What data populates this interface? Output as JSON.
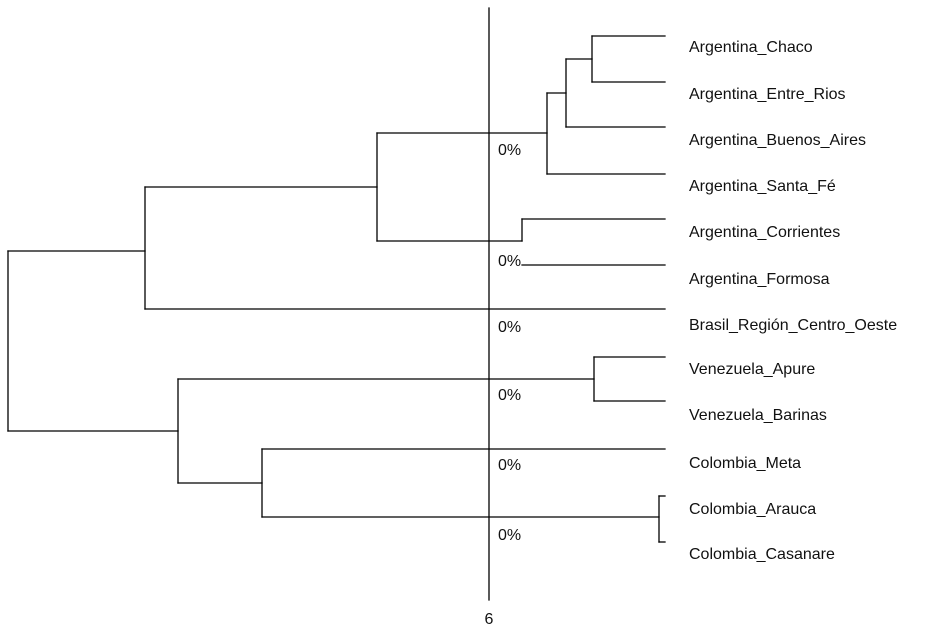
{
  "dendrogram": {
    "leaves": [
      "Argentina_Chaco",
      "Argentina_Entre_Rios",
      "Argentina_Buenos_Aires",
      "Argentina_Santa_Fé",
      "Argentina_Corrientes",
      "Argentina_Formosa",
      "Brasil_Región_Centro_Oeste",
      "Venezuela_Apure",
      "Venezuela_Barinas",
      "Colombia_Meta",
      "Colombia_Arauca",
      "Colombia_Casanare"
    ],
    "cut_value": "6",
    "percent_labels": [
      "0%",
      "0%",
      "0%",
      "0%",
      "0%",
      "0%"
    ],
    "line_color": "#000000"
  }
}
